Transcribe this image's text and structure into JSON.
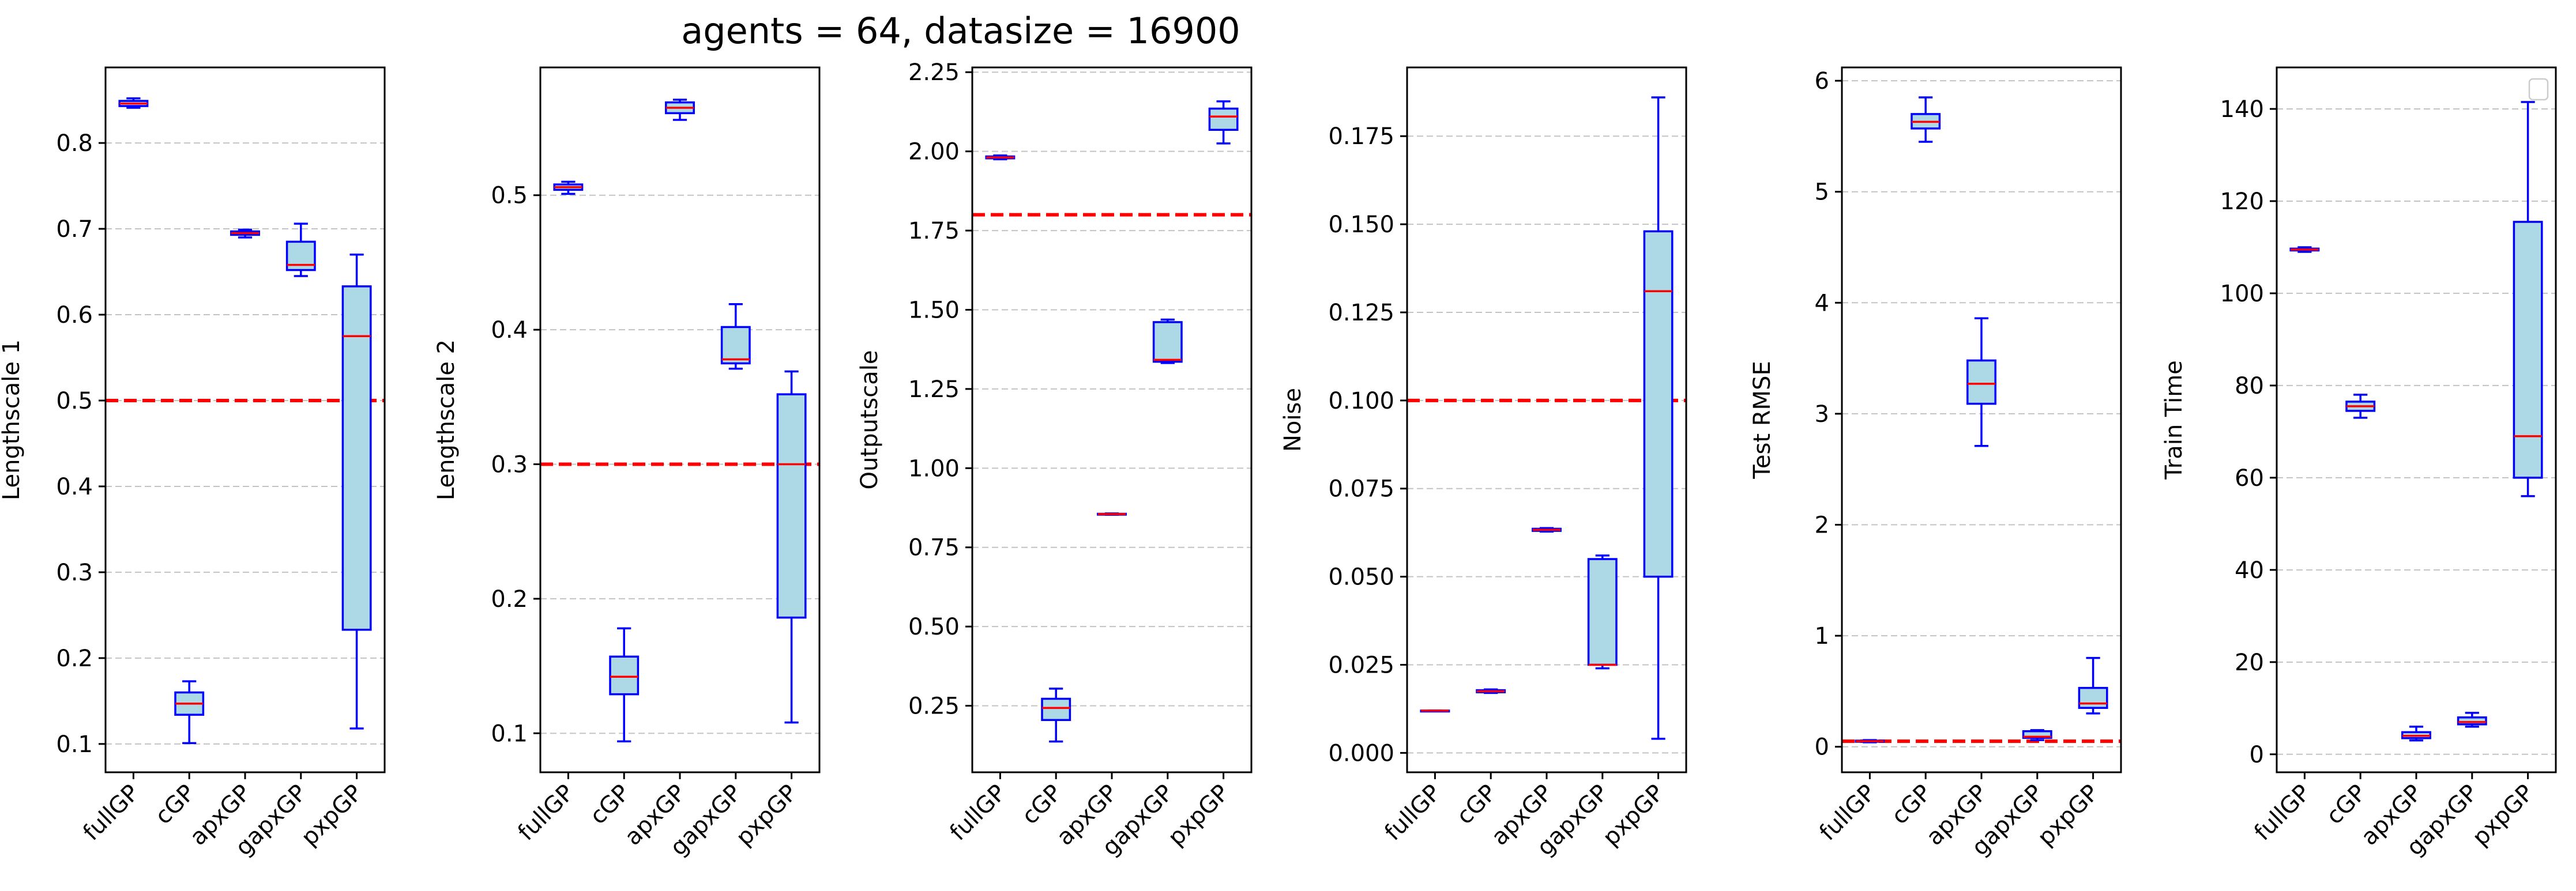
{
  "figure": {
    "suptitle": "agents = 64, datasize = 16900"
  },
  "colors": {
    "box_fill": "#add8e6",
    "box_edge": "#0000ff",
    "median": "#ff0000",
    "reference_line": "#ff0000",
    "grid": "#b0b0b0",
    "axes": "#000000"
  },
  "chart_data": [
    {
      "type": "box",
      "ylabel": "Lengthscale 1",
      "categories": [
        "fullGP",
        "cGP",
        "apxGP",
        "gapxGP",
        "pxpGP"
      ],
      "ylim": [
        0.067,
        0.888
      ],
      "yticks": [
        0.1,
        0.2,
        0.3,
        0.4,
        0.5,
        0.6,
        0.7,
        0.8
      ],
      "ytick_labels": [
        "0.1",
        "0.2",
        "0.3",
        "0.4",
        "0.5",
        "0.6",
        "0.7",
        "0.8"
      ],
      "reference_line": 0.5,
      "grid": "y-dashed",
      "boxes": [
        {
          "whislo": 0.841,
          "q1": 0.843,
          "med": 0.846,
          "q3": 0.849,
          "whishi": 0.852
        },
        {
          "whislo": 0.101,
          "q1": 0.134,
          "med": 0.147,
          "q3": 0.16,
          "whishi": 0.173
        },
        {
          "whislo": 0.69,
          "q1": 0.693,
          "med": 0.695,
          "q3": 0.697,
          "whishi": 0.699
        },
        {
          "whislo": 0.645,
          "q1": 0.652,
          "med": 0.658,
          "q3": 0.685,
          "whishi": 0.706
        },
        {
          "whislo": 0.118,
          "q1": 0.233,
          "med": 0.575,
          "q3": 0.633,
          "whishi": 0.67
        }
      ]
    },
    {
      "type": "box",
      "ylabel": "Lengthscale 2",
      "categories": [
        "fullGP",
        "cGP",
        "apxGP",
        "gapxGP",
        "pxpGP"
      ],
      "ylim": [
        0.071,
        0.595
      ],
      "yticks": [
        0.1,
        0.2,
        0.3,
        0.4,
        0.5
      ],
      "ytick_labels": [
        "0.1",
        "0.2",
        "0.3",
        "0.4",
        "0.5"
      ],
      "reference_line": 0.3,
      "grid": "y-dashed",
      "boxes": [
        {
          "whislo": 0.501,
          "q1": 0.504,
          "med": 0.506,
          "q3": 0.508,
          "whishi": 0.51
        },
        {
          "whislo": 0.094,
          "q1": 0.129,
          "med": 0.142,
          "q3": 0.157,
          "whishi": 0.178
        },
        {
          "whislo": 0.556,
          "q1": 0.561,
          "med": 0.565,
          "q3": 0.569,
          "whishi": 0.571
        },
        {
          "whislo": 0.371,
          "q1": 0.375,
          "med": 0.378,
          "q3": 0.402,
          "whishi": 0.419
        },
        {
          "whislo": 0.108,
          "q1": 0.186,
          "med": 0.3,
          "q3": 0.352,
          "whishi": 0.369
        }
      ]
    },
    {
      "type": "box",
      "ylabel": "Outputscale",
      "categories": [
        "fullGP",
        "cGP",
        "apxGP",
        "gapxGP",
        "pxpGP"
      ],
      "ylim": [
        0.04,
        2.265
      ],
      "yticks": [
        0.25,
        0.5,
        0.75,
        1.0,
        1.25,
        1.5,
        1.75,
        2.0,
        2.25
      ],
      "ytick_labels": [
        "0.25",
        "0.50",
        "0.75",
        "1.00",
        "1.25",
        "1.50",
        "1.75",
        "2.00",
        "2.25"
      ],
      "reference_line": 1.8,
      "grid": "y-dashed",
      "boxes": [
        {
          "whislo": 1.975,
          "q1": 1.978,
          "med": 1.981,
          "q3": 1.984,
          "whishi": 1.987
        },
        {
          "whislo": 0.137,
          "q1": 0.205,
          "med": 0.243,
          "q3": 0.272,
          "whishi": 0.304
        },
        {
          "whislo": 0.853,
          "q1": 0.854,
          "med": 0.855,
          "q3": 0.856,
          "whishi": 0.857
        },
        {
          "whislo": 1.332,
          "q1": 1.336,
          "med": 1.342,
          "q3": 1.461,
          "whishi": 1.469
        },
        {
          "whislo": 2.025,
          "q1": 2.068,
          "med": 2.11,
          "q3": 2.135,
          "whishi": 2.158
        }
      ]
    },
    {
      "type": "box",
      "ylabel": "Noise",
      "categories": [
        "fullGP",
        "cGP",
        "apxGP",
        "gapxGP",
        "pxpGP"
      ],
      "ylim": [
        -0.0055,
        0.1945
      ],
      "yticks": [
        0.0,
        0.025,
        0.05,
        0.075,
        0.1,
        0.125,
        0.15,
        0.175
      ],
      "ytick_labels": [
        "0.000",
        "0.025",
        "0.050",
        "0.075",
        "0.100",
        "0.125",
        "0.150",
        "0.175"
      ],
      "reference_line": 0.1,
      "grid": "y-dashed",
      "boxes": [
        {
          "whislo": 0.012,
          "q1": 0.012,
          "med": 0.012,
          "q3": 0.012,
          "whishi": 0.012
        },
        {
          "whislo": 0.017,
          "q1": 0.0172,
          "med": 0.0175,
          "q3": 0.0178,
          "whishi": 0.018
        },
        {
          "whislo": 0.0628,
          "q1": 0.063,
          "med": 0.0633,
          "q3": 0.0636,
          "whishi": 0.0638
        },
        {
          "whislo": 0.024,
          "q1": 0.025,
          "med": 0.025,
          "q3": 0.055,
          "whishi": 0.056
        },
        {
          "whislo": 0.004,
          "q1": 0.05,
          "med": 0.131,
          "q3": 0.148,
          "whishi": 0.186
        }
      ]
    },
    {
      "type": "box",
      "ylabel": "Test RMSE",
      "categories": [
        "fullGP",
        "cGP",
        "apxGP",
        "gapxGP",
        "pxpGP"
      ],
      "ylim": [
        -0.23,
        6.12
      ],
      "yticks": [
        0,
        1,
        2,
        3,
        4,
        5,
        6
      ],
      "ytick_labels": [
        "0",
        "1",
        "2",
        "3",
        "4",
        "5",
        "6"
      ],
      "reference_line": 0.05,
      "grid": "y-dashed",
      "boxes": [
        {
          "whislo": 0.04,
          "q1": 0.045,
          "med": 0.05,
          "q3": 0.055,
          "whishi": 0.06
        },
        {
          "whislo": 5.45,
          "q1": 5.57,
          "med": 5.63,
          "q3": 5.7,
          "whishi": 5.85
        },
        {
          "whislo": 2.71,
          "q1": 3.09,
          "med": 3.27,
          "q3": 3.48,
          "whishi": 3.86
        },
        {
          "whislo": 0.06,
          "q1": 0.08,
          "med": 0.09,
          "q3": 0.14,
          "whishi": 0.15
        },
        {
          "whislo": 0.3,
          "q1": 0.35,
          "med": 0.39,
          "q3": 0.53,
          "whishi": 0.8
        }
      ]
    },
    {
      "type": "box",
      "ylabel": "Train Time",
      "categories": [
        "fullGP",
        "cGP",
        "apxGP",
        "gapxGP",
        "pxpGP"
      ],
      "ylim": [
        -3.9,
        149.0
      ],
      "yticks": [
        0,
        20,
        40,
        60,
        80,
        100,
        120,
        140
      ],
      "ytick_labels": [
        "0",
        "20",
        "40",
        "60",
        "80",
        "100",
        "120",
        "140"
      ],
      "reference_line": null,
      "grid": "y-dashed",
      "legend": "top-right (empty)",
      "boxes": [
        {
          "whislo": 109.0,
          "q1": 109.3,
          "med": 109.5,
          "q3": 109.7,
          "whishi": 110.0
        },
        {
          "whislo": 73.0,
          "q1": 74.5,
          "med": 75.5,
          "q3": 76.5,
          "whishi": 78.0
        },
        {
          "whislo": 3.0,
          "q1": 3.5,
          "med": 4.0,
          "q3": 4.8,
          "whishi": 6.0
        },
        {
          "whislo": 6.0,
          "q1": 6.5,
          "med": 7.0,
          "q3": 8.0,
          "whishi": 9.0
        },
        {
          "whislo": 56.0,
          "q1": 60.0,
          "med": 69.0,
          "q3": 115.5,
          "whishi": 141.5
        }
      ]
    }
  ]
}
